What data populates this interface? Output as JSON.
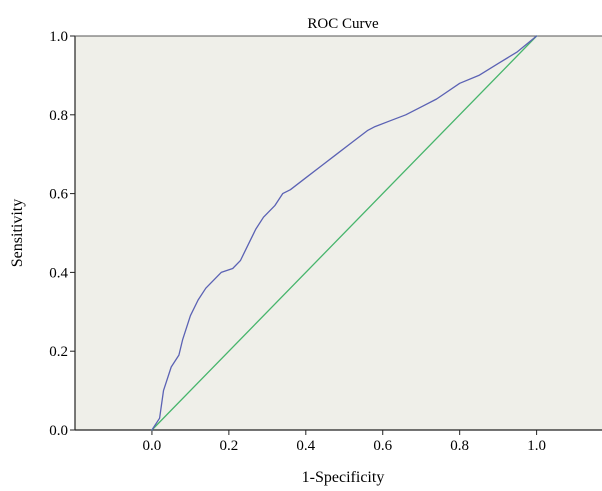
{
  "chart_data": {
    "type": "line",
    "title": "ROC Curve",
    "xlabel": "1-Specificity",
    "ylabel": "Sensitivity",
    "xlim": [
      -0.2,
      1.17
    ],
    "ylim": [
      0,
      1
    ],
    "xticks": [
      "0.0",
      "0.2",
      "0.4",
      "0.6",
      "0.8",
      "1.0"
    ],
    "xtick_values": [
      0,
      0.2,
      0.4,
      0.6,
      0.8,
      1.0
    ],
    "yticks": [
      "0.0",
      "0.2",
      "0.4",
      "0.6",
      "0.8",
      "1.0"
    ],
    "ytick_values": [
      0,
      0.2,
      0.4,
      0.6,
      0.8,
      1.0
    ],
    "grid": false,
    "colors": {
      "plot_background": "#efefe9",
      "roc_curve": "#5b62b4",
      "reference_line": "#47b56c"
    },
    "series": [
      {
        "x": [
          0.0,
          0.02,
          0.03,
          0.05,
          0.07,
          0.08,
          0.1,
          0.12,
          0.14,
          0.16,
          0.18,
          0.21,
          0.23,
          0.25,
          0.27,
          0.29,
          0.32,
          0.34,
          0.36,
          0.4,
          0.44,
          0.48,
          0.52,
          0.56,
          0.58,
          0.62,
          0.66,
          0.7,
          0.74,
          0.8,
          0.85,
          0.9,
          0.95,
          1.0
        ],
        "y": [
          0.0,
          0.03,
          0.1,
          0.16,
          0.19,
          0.23,
          0.29,
          0.33,
          0.36,
          0.38,
          0.4,
          0.41,
          0.43,
          0.47,
          0.51,
          0.54,
          0.57,
          0.6,
          0.61,
          0.64,
          0.67,
          0.7,
          0.73,
          0.76,
          0.77,
          0.785,
          0.8,
          0.82,
          0.84,
          0.88,
          0.9,
          0.93,
          0.96,
          1.0
        ]
      },
      {
        "x": [
          0.0,
          1.0
        ],
        "y": [
          0.0,
          1.0
        ]
      }
    ]
  }
}
